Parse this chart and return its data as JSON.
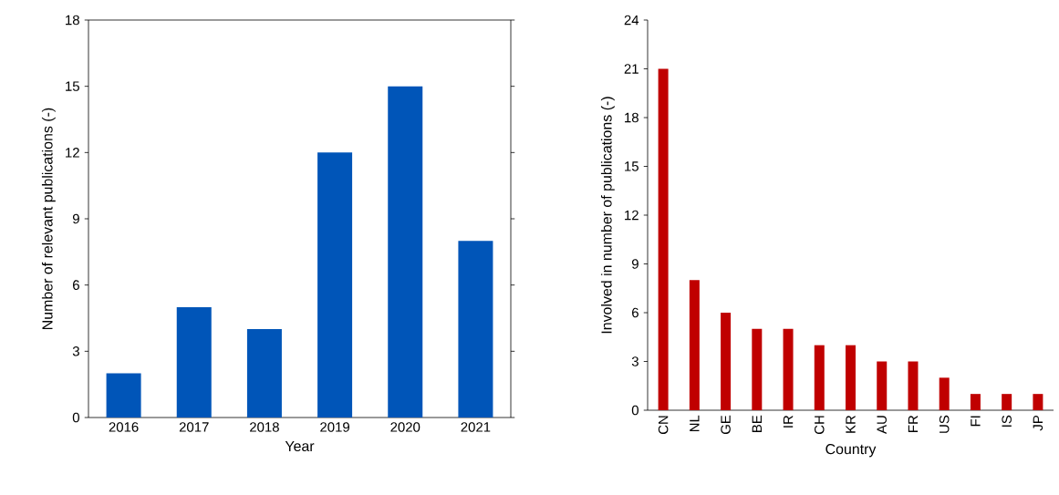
{
  "chart_data": [
    {
      "type": "bar",
      "xlabel": "Year",
      "ylabel": "Number of relevant publications (-)",
      "categories": [
        "2016",
        "2017",
        "2018",
        "2019",
        "2020",
        "2021"
      ],
      "values": [
        2,
        5,
        4,
        12,
        15,
        8
      ],
      "color": "#0055b8",
      "ylim": [
        0,
        18
      ],
      "yticks": [
        0,
        3,
        6,
        9,
        12,
        15,
        18
      ]
    },
    {
      "type": "bar",
      "xlabel": "Country",
      "ylabel": "Involved in number of publications (-)",
      "categories": [
        "CN",
        "NL",
        "GE",
        "BE",
        "IR",
        "CH",
        "KR",
        "AU",
        "FR",
        "US",
        "FI",
        "IS",
        "JP"
      ],
      "values": [
        21,
        8,
        6,
        5,
        5,
        4,
        4,
        3,
        3,
        2,
        1,
        1,
        1
      ],
      "color": "#c00000",
      "ylim": [
        0,
        24
      ],
      "yticks": [
        0,
        3,
        6,
        9,
        12,
        15,
        18,
        21,
        24
      ]
    }
  ]
}
